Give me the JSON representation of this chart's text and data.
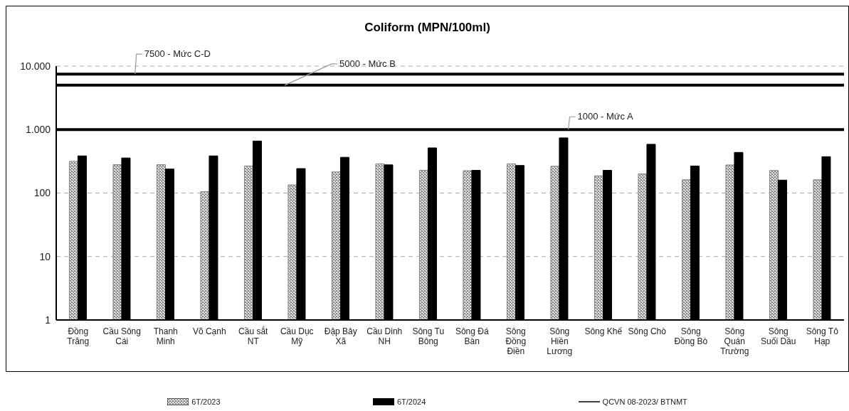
{
  "chart_data": {
    "type": "bar",
    "title": "Coliform (MPN/100ml)",
    "categories": [
      "Đồng Trăng",
      "Cầu Sông Cái",
      "Thanh Minh",
      "Võ Cạnh",
      "Cầu sắt NT",
      "Cầu Dục Mỹ",
      "Đập Bảy Xã",
      "Cầu Dinh NH",
      "Sông Tu Bông",
      "Sông Đá Bàn",
      "Sông Đồng Điền",
      "Sông Hiền Lương",
      "Sông Khế",
      "Sông Chò",
      "Sông Đồng Bò",
      "Sông Quán Trường",
      "Sông Suối Dầu",
      "Sông Tô Hạp"
    ],
    "series": [
      {
        "name": "6T/2023",
        "color": "#808080",
        "values": [
          316,
          280,
          280,
          105,
          267,
          134,
          215,
          288,
          229,
          225,
          288,
          264,
          187,
          200,
          162,
          277,
          227,
          162
        ]
      },
      {
        "name": "6T/2024",
        "color": "#000000",
        "values": [
          385,
          357,
          239,
          385,
          660,
          243,
          366,
          278,
          515,
          228,
          272,
          740,
          228,
          587,
          267,
          437,
          160,
          374
        ]
      }
    ],
    "log": "y",
    "ylim": [
      1,
      10000
    ],
    "yticks": [
      1,
      10,
      100,
      {
        "value": 1000,
        "label": "1.000"
      },
      {
        "value": 10000,
        "label": "10.000"
      }
    ],
    "grid": "y",
    "legend": "bottom",
    "ref_lines": [
      {
        "axis": "y",
        "value": 7500,
        "label": "7500 - Mức C-D",
        "color": "#000000"
      },
      {
        "axis": "y",
        "value": 5000,
        "label": "5000 - Mức B",
        "color": "#000000"
      },
      {
        "axis": "y",
        "value": 1000,
        "label": "1000 - Mức A",
        "color": "#000000"
      }
    ],
    "annotations": [
      "QCVN 08-2023/ BTNMT"
    ]
  }
}
